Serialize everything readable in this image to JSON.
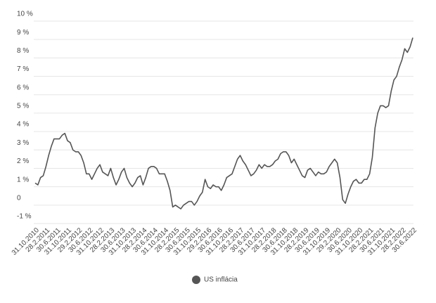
{
  "chart_data": {
    "type": "line",
    "categories": [
      "31.10.2010",
      null,
      null,
      null,
      "28.2.2011",
      null,
      null,
      null,
      "30.6.2011",
      null,
      null,
      null,
      "31.10.2011",
      null,
      null,
      null,
      "29.2.2012",
      null,
      null,
      null,
      "30.6.2012",
      null,
      null,
      null,
      "31.10.2012",
      null,
      null,
      null,
      "28.2.2013",
      null,
      null,
      null,
      "30.6.2013",
      null,
      null,
      null,
      "31.10.2013",
      null,
      null,
      null,
      "28.2.2014",
      null,
      null,
      null,
      "30.6.2014",
      null,
      null,
      null,
      "31.10.2014",
      null,
      null,
      null,
      "28.2.2015",
      null,
      null,
      null,
      "30.6.2015",
      null,
      null,
      null,
      "31.10.2015",
      null,
      null,
      null,
      "29.2.2016",
      null,
      null,
      null,
      "30.6.2016",
      null,
      null,
      null,
      "31.10.2016",
      null,
      null,
      null,
      "28.2.2017",
      null,
      null,
      null,
      "30.6.2017",
      null,
      null,
      null,
      "31.10.2017",
      null,
      null,
      null,
      "28.2.2018",
      null,
      null,
      null,
      "30.6.2018",
      null,
      null,
      null,
      "31.10.2018",
      null,
      null,
      null,
      "28.2.2019",
      null,
      null,
      null,
      "30.6.2019",
      null,
      null,
      null,
      "31.10.2019",
      null,
      null,
      null,
      "29.2.2020",
      null,
      null,
      null,
      "30.6.2020",
      null,
      null,
      null,
      "31.10.2020",
      null,
      null,
      null,
      "28.2.2021",
      null,
      null,
      null,
      "30.6.2021",
      null,
      null,
      null,
      "31.10.2021",
      null,
      null,
      null,
      "28.2.2022",
      null,
      null,
      null,
      "30.6.2022"
    ],
    "series": [
      {
        "name": "US inflácia",
        "color": "#555555",
        "values": [
          1.2,
          1.1,
          1.5,
          1.6,
          2.1,
          2.7,
          3.2,
          3.6,
          3.6,
          3.6,
          3.8,
          3.9,
          3.5,
          3.4,
          3.0,
          2.9,
          2.9,
          2.7,
          2.3,
          1.7,
          1.7,
          1.4,
          1.7,
          2.0,
          2.2,
          1.8,
          1.7,
          1.6,
          2.0,
          1.5,
          1.1,
          1.4,
          1.8,
          2.0,
          1.5,
          1.2,
          1.0,
          1.2,
          1.5,
          1.6,
          1.1,
          1.5,
          2.0,
          2.1,
          2.1,
          2.0,
          1.7,
          1.7,
          1.7,
          1.3,
          0.8,
          -0.1,
          0.0,
          -0.1,
          -0.2,
          0.0,
          0.1,
          0.2,
          0.2,
          0.0,
          0.2,
          0.5,
          0.7,
          1.4,
          1.0,
          0.9,
          1.1,
          1.0,
          1.0,
          0.8,
          1.1,
          1.5,
          1.6,
          1.7,
          2.1,
          2.5,
          2.7,
          2.4,
          2.2,
          1.9,
          1.6,
          1.7,
          1.9,
          2.2,
          2.0,
          2.2,
          2.1,
          2.1,
          2.2,
          2.4,
          2.5,
          2.8,
          2.9,
          2.9,
          2.7,
          2.3,
          2.5,
          2.2,
          1.9,
          1.6,
          1.5,
          1.9,
          2.0,
          1.8,
          1.6,
          1.8,
          1.7,
          1.7,
          1.8,
          2.1,
          2.3,
          2.5,
          2.3,
          1.5,
          0.3,
          0.1,
          0.6,
          1.0,
          1.3,
          1.4,
          1.2,
          1.2,
          1.4,
          1.4,
          1.7,
          2.6,
          4.2,
          5.0,
          5.4,
          5.4,
          5.3,
          5.4,
          6.2,
          6.8,
          7.0,
          7.5,
          7.9,
          8.5,
          8.3,
          8.6,
          9.1
        ]
      }
    ],
    "ylim": [
      -1,
      10
    ],
    "yticks": [
      {
        "value": -1,
        "label": "-1 %"
      },
      0,
      {
        "value": 1,
        "label": "1 %"
      },
      {
        "value": 2,
        "label": "2 %"
      },
      {
        "value": 3,
        "label": "3 %"
      },
      {
        "value": 4,
        "label": "4 %"
      },
      {
        "value": 5,
        "label": "5 %"
      },
      {
        "value": 6,
        "label": "6 %"
      },
      {
        "value": 7,
        "label": "7 %"
      },
      {
        "value": 8,
        "label": "8 %"
      },
      {
        "value": 9,
        "label": "9 %"
      },
      {
        "value": 10,
        "label": "10 %"
      }
    ],
    "grid": true
  }
}
